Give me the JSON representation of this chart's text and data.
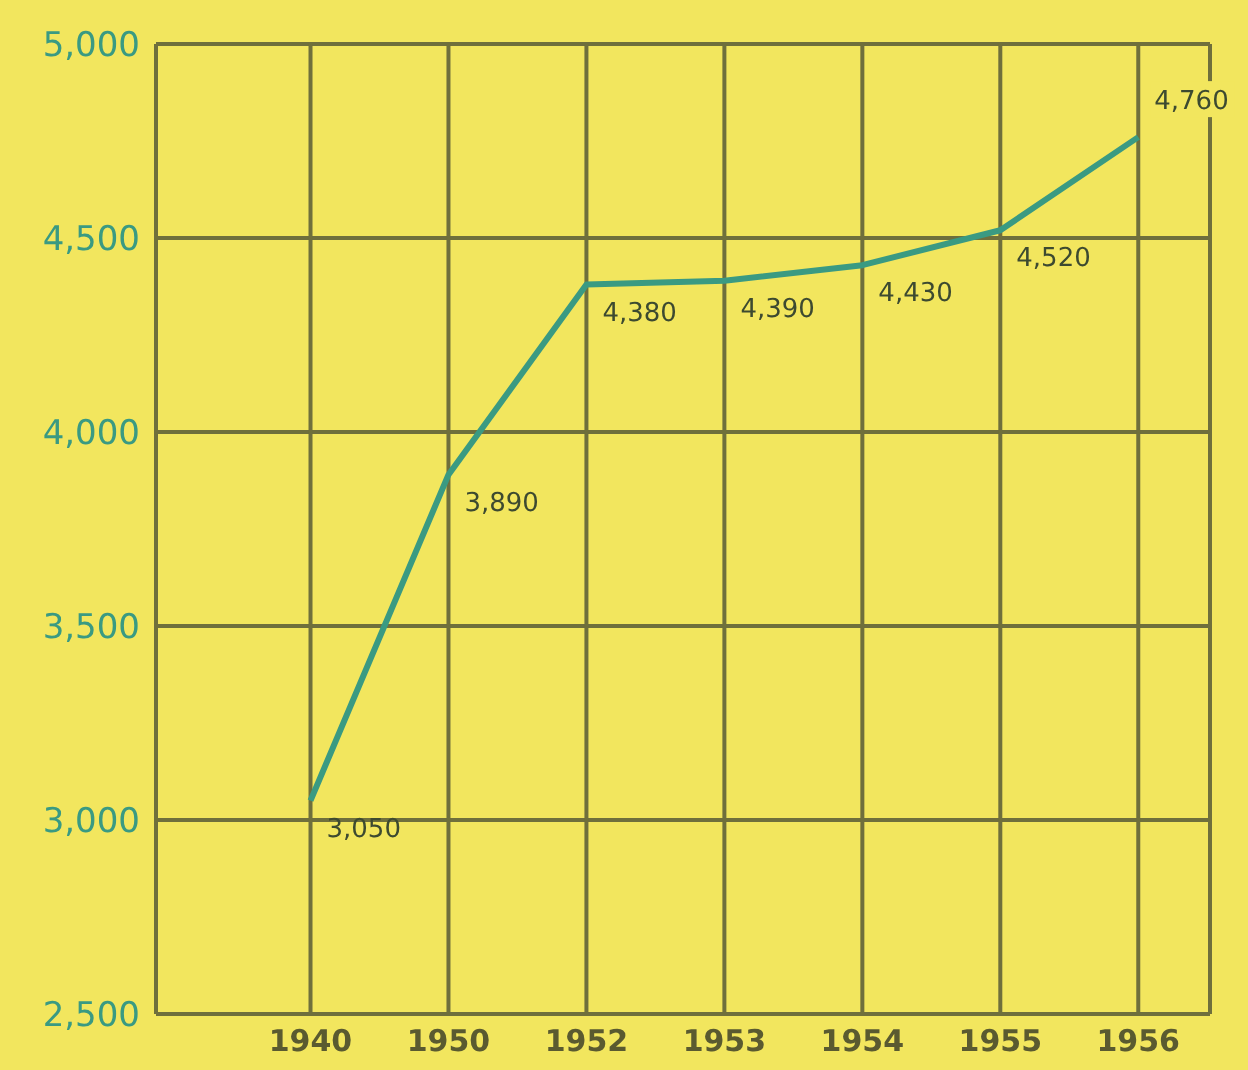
{
  "chart_data": {
    "type": "line",
    "categories": [
      "1940",
      "1950",
      "1952",
      "1953",
      "1954",
      "1955",
      "1956"
    ],
    "series": [
      {
        "color": "#3a9a82",
        "values": [
          3050,
          3890,
          4380,
          4390,
          4430,
          4520,
          4760
        ],
        "value_labels": [
          "3,050",
          "3,890",
          "4,380",
          "4,390",
          "4,430",
          "4,520",
          "4,760"
        ]
      }
    ],
    "ylim": [
      2500,
      5000
    ],
    "yticks": [
      {
        "value": 2500,
        "label": "2,500"
      },
      {
        "value": 3000,
        "label": "3,000"
      },
      {
        "value": 3500,
        "label": "3,500"
      },
      {
        "value": 4000,
        "label": "4,000"
      },
      {
        "value": 4500,
        "label": "4,500"
      },
      {
        "value": 5000,
        "label": "5,000"
      }
    ],
    "grid": true,
    "marker": "none",
    "line_style": "solid"
  }
}
